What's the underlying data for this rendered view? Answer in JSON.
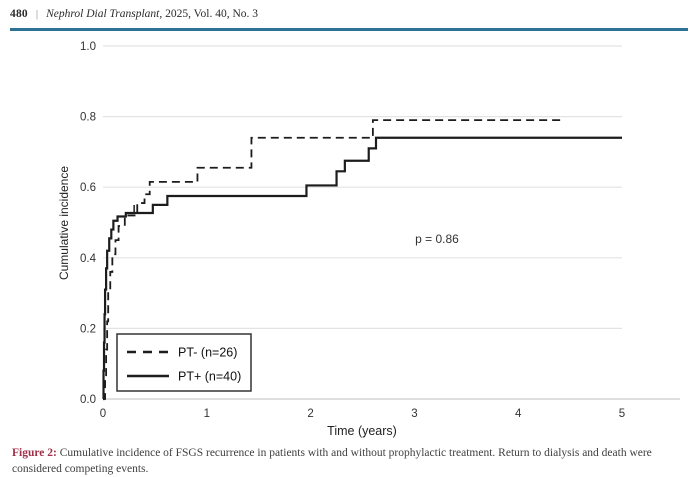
{
  "header": {
    "page_number": "480",
    "separator": "|",
    "journal": "Nephrol Dial Transplant",
    "issue": ", 2025, Vol. 40, No. 3",
    "rule_color": "#2d7194"
  },
  "caption": {
    "label": "Figure 2:",
    "label_color": "#a03049",
    "text": " Cumulative incidence of FSGS recurrence in patients with and without prophylactic treatment. Return to dialysis and death were considered competing events."
  },
  "chart_data": {
    "type": "line",
    "subtype": "cumulative-incidence-step-curves",
    "title": "",
    "xlabel": "Time (years)",
    "ylabel": "Cumulative incidence",
    "xlim": [
      0,
      5
    ],
    "ylim": [
      0.0,
      1.0
    ],
    "xticks": [
      0,
      1,
      2,
      3,
      4,
      5
    ],
    "yticks": [
      "0.0",
      "0.2",
      "0.4",
      "0.6",
      "0.8",
      "1.0"
    ],
    "grid": "horizontal",
    "annotation": {
      "text": "p = 0.86",
      "x": 3.2,
      "y": 0.45
    },
    "legend_position": "lower-left",
    "colors": {
      "curve": "#1c1c1c",
      "gridline": "#e3e3e3",
      "axis": "#c9c9c9",
      "label": "#333333"
    },
    "series": [
      {
        "name": "PT- (n=26)",
        "style": "dashed",
        "end_t": 4.42,
        "step_points": [
          [
            0,
            0
          ],
          [
            0.02,
            0.06
          ],
          [
            0.03,
            0.14
          ],
          [
            0.04,
            0.22
          ],
          [
            0.05,
            0.3
          ],
          [
            0.07,
            0.36
          ],
          [
            0.09,
            0.41
          ],
          [
            0.12,
            0.45
          ],
          [
            0.15,
            0.49
          ],
          [
            0.21,
            0.52
          ],
          [
            0.33,
            0.555
          ],
          [
            0.4,
            0.58
          ],
          [
            0.45,
            0.615
          ],
          [
            0.91,
            0.655
          ],
          [
            1.43,
            0.74
          ],
          [
            2.6,
            0.79
          ]
        ],
        "censor_ticks": []
      },
      {
        "name": "PT+ (n=40)",
        "style": "solid",
        "end_t": 5.0,
        "step_points": [
          [
            0,
            0
          ],
          [
            0.005,
            0.08
          ],
          [
            0.01,
            0.16
          ],
          [
            0.015,
            0.24
          ],
          [
            0.02,
            0.31
          ],
          [
            0.03,
            0.37
          ],
          [
            0.04,
            0.42
          ],
          [
            0.06,
            0.455
          ],
          [
            0.08,
            0.48
          ],
          [
            0.1,
            0.505
          ],
          [
            0.14,
            0.517
          ],
          [
            0.22,
            0.527
          ],
          [
            0.48,
            0.55
          ],
          [
            0.62,
            0.575
          ],
          [
            1.96,
            0.605
          ],
          [
            2.25,
            0.645
          ],
          [
            2.33,
            0.675
          ],
          [
            2.56,
            0.71
          ],
          [
            2.63,
            0.74
          ]
        ],
        "censor_ticks": [
          [
            0.3,
            0.527
          ]
        ]
      }
    ]
  }
}
